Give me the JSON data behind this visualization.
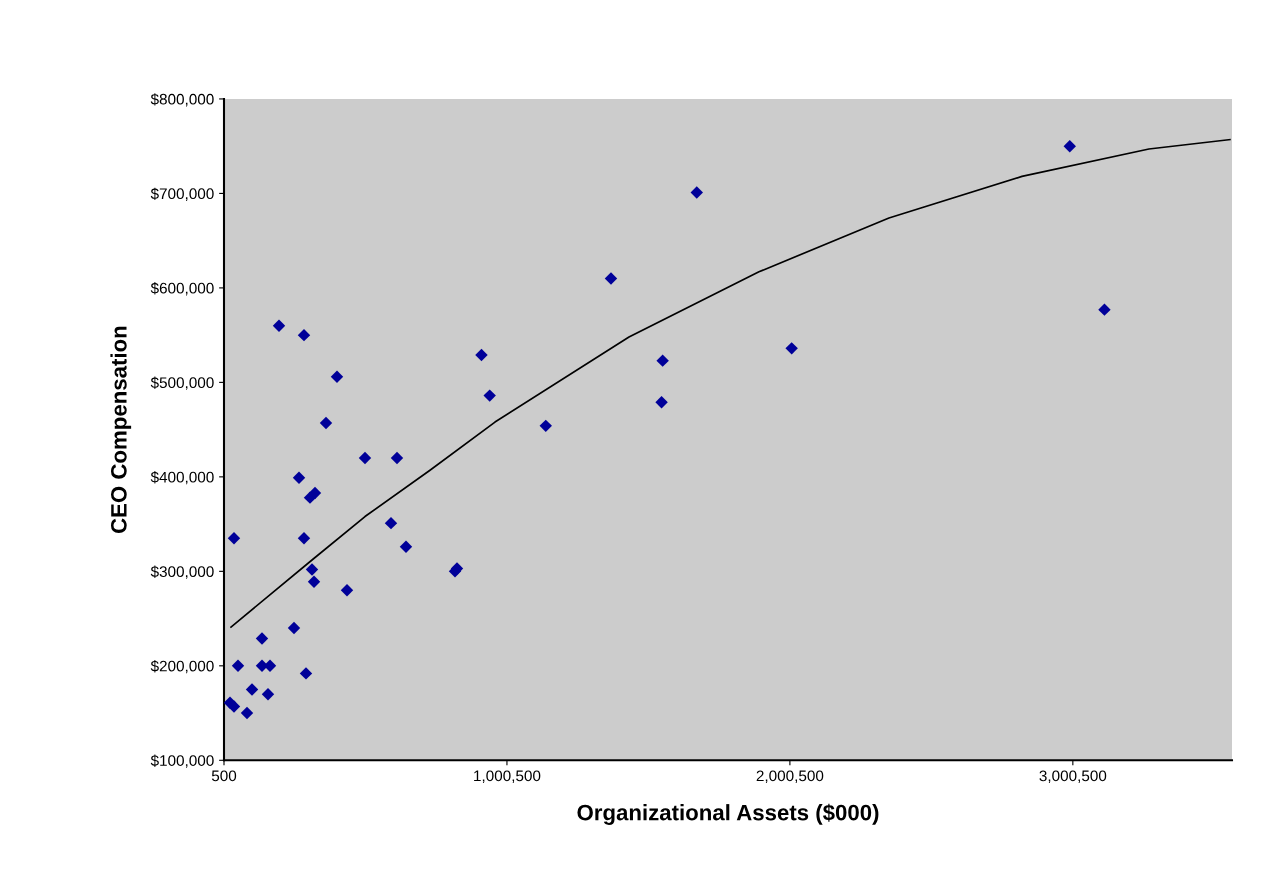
{
  "chart_data": {
    "type": "scatter",
    "xlabel": "Organizational Assets ($000)",
    "ylabel": "CEO Compensation",
    "xlim": [
      500,
      3563000
    ],
    "ylim": [
      100000,
      800000
    ],
    "xticks": [
      {
        "value": 500,
        "label": "500"
      },
      {
        "value": 1000500,
        "label": "1,000,500"
      },
      {
        "value": 2000500,
        "label": "2,000,500"
      },
      {
        "value": 3000500,
        "label": "3,000,500"
      }
    ],
    "yticks": [
      {
        "value": 100000,
        "label": "$100,000"
      },
      {
        "value": 200000,
        "label": "$200,000"
      },
      {
        "value": 300000,
        "label": "$300,000"
      },
      {
        "value": 400000,
        "label": "$400,000"
      },
      {
        "value": 500000,
        "label": "$500,000"
      },
      {
        "value": 600000,
        "label": "$600,000"
      },
      {
        "value": 700000,
        "label": "$700,000"
      },
      {
        "value": 800000,
        "label": "$800,000"
      }
    ],
    "grid": false,
    "marker": "diamond",
    "series": [
      {
        "color": "#000099",
        "x": [
          35800,
          50000,
          21700,
          35800,
          81800,
          99500,
          156000,
          134800,
          134800,
          163100,
          247900,
          290300,
          194900,
          283200,
          399800,
          361000,
          265600,
          304400,
          322100,
          283200,
          311500,
          318600,
          435200,
          498800,
          611900,
          590700,
          643700,
          816900,
          824000,
          910500,
          939500,
          1137700,
          1368200,
          1671400,
          1550800,
          1547000,
          2006800,
          2989600,
          3112200
        ],
        "values": [
          335000,
          200000,
          161000,
          157000,
          150000,
          175000,
          170000,
          229000,
          200000,
          200000,
          240000,
          192000,
          560000,
          550000,
          506000,
          457000,
          399000,
          378000,
          383000,
          335000,
          302000,
          289000,
          280000,
          420000,
          420000,
          351000,
          326000,
          300000,
          303000,
          529000,
          486000,
          454000,
          610000,
          701000,
          523000,
          479000,
          536000,
          750000,
          577000
        ]
      },
      {
        "type": "line",
        "color": "#000000",
        "marker": "none",
        "line_style": "solid",
        "x": [
          25200,
          311500,
          498800,
          728500,
          958200,
          1431800,
          1891200,
          2350600,
          2820600,
          3269400,
          3555700
        ],
        "values": [
          241000,
          312000,
          358000,
          407000,
          458000,
          548000,
          617000,
          674000,
          718000,
          747000,
          757000
        ]
      }
    ]
  }
}
